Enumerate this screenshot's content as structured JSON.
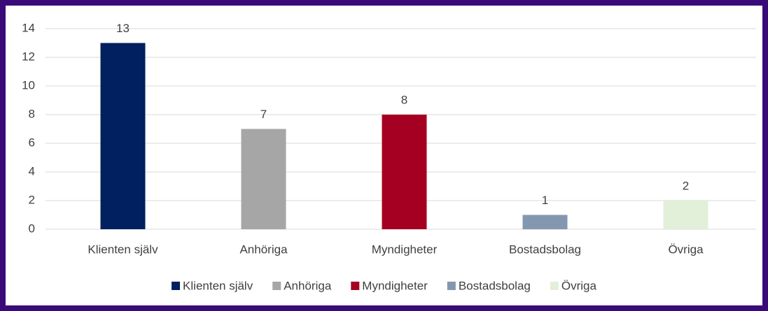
{
  "chart_data": {
    "type": "bar",
    "categories": [
      "Klienten själv",
      "Anhöriga",
      "Myndigheter",
      "Bostadsbolag",
      "Övriga"
    ],
    "values": [
      13,
      7,
      8,
      1,
      2
    ],
    "colors": [
      "#002060",
      "#a6a6a6",
      "#a50021",
      "#8497b0",
      "#e2efd9"
    ],
    "ylim": [
      0,
      14
    ],
    "yticks": [
      0,
      2,
      4,
      6,
      8,
      10,
      12,
      14
    ],
    "grid": true,
    "legend": "bottom"
  }
}
